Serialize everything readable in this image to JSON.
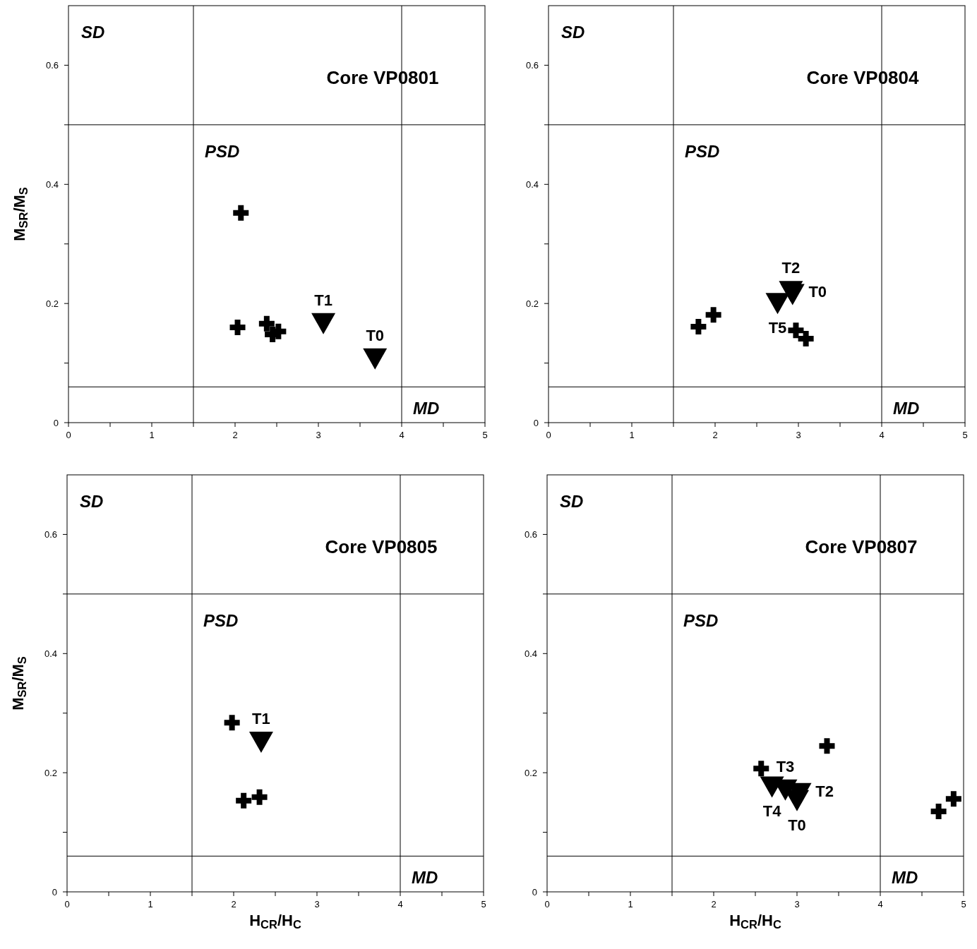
{
  "chart_data": [
    {
      "type": "scatter",
      "title": "Core VP0801",
      "ylabel": "M$_{SR}$/M$_{S}$",
      "xlim": [
        0,
        5
      ],
      "ylim": [
        0,
        0.7
      ],
      "xticks": [
        0,
        {
          "value": 0.5,
          "label": null
        },
        1,
        {
          "value": 1.5,
          "label": null
        },
        2,
        {
          "value": 2.5,
          "label": null
        },
        3,
        {
          "value": 3.5,
          "label": null
        },
        4,
        {
          "value": 4.5,
          "label": null
        },
        5
      ],
      "yticks": [
        {
          "value": 0,
          "label": "0"
        },
        {
          "value": 0.1,
          "label": null
        },
        {
          "value": 0.2,
          "label": "0.2"
        },
        {
          "value": 0.3,
          "label": null
        },
        {
          "value": 0.4,
          "label": "0.4"
        },
        {
          "value": 0.5,
          "label": null
        },
        {
          "value": 0.6,
          "label": "0.6"
        }
      ],
      "grid": false,
      "ref_lines": [
        {
          "axis": "x",
          "value": 1.5
        },
        {
          "axis": "x",
          "value": 4
        },
        {
          "axis": "y",
          "value": 0.5
        },
        {
          "axis": "y",
          "value": 0.06
        }
      ],
      "annotations": [
        "SD",
        "PSD",
        "MD"
      ],
      "series": [
        {
          "type": "scatter",
          "marker": "cross",
          "color": "#000000",
          "x": [
            2.07,
            2.03,
            2.38,
            2.45,
            2.52
          ],
          "values": [
            0.352,
            0.16,
            0.166,
            0.148,
            0.153
          ]
        },
        {
          "type": "scatter",
          "marker": "triangle",
          "color": "#000000",
          "x": [
            3.06,
            3.68
          ],
          "values": [
            0.166,
            0.107
          ],
          "value_labels": [
            "T1",
            "T0"
          ]
        }
      ]
    },
    {
      "type": "scatter",
      "title": "Core VP0804",
      "xlim": [
        0,
        5
      ],
      "ylim": [
        0,
        0.7
      ],
      "xticks": [
        0,
        {
          "value": 0.5,
          "label": null
        },
        1,
        {
          "value": 1.5,
          "label": null
        },
        2,
        {
          "value": 2.5,
          "label": null
        },
        3,
        {
          "value": 3.5,
          "label": null
        },
        4,
        {
          "value": 4.5,
          "label": null
        },
        5
      ],
      "yticks": [
        {
          "value": 0,
          "label": "0"
        },
        {
          "value": 0.1,
          "label": null
        },
        {
          "value": 0.2,
          "label": "0.2"
        },
        {
          "value": 0.3,
          "label": null
        },
        {
          "value": 0.4,
          "label": "0.4"
        },
        {
          "value": 0.5,
          "label": null
        },
        {
          "value": 0.6,
          "label": "0.6"
        }
      ],
      "grid": false,
      "ref_lines": [
        {
          "axis": "x",
          "value": 1.5
        },
        {
          "axis": "x",
          "value": 4
        },
        {
          "axis": "y",
          "value": 0.5
        },
        {
          "axis": "y",
          "value": 0.06
        }
      ],
      "annotations": [
        "SD",
        "PSD",
        "MD"
      ],
      "series": [
        {
          "type": "scatter",
          "marker": "cross",
          "color": "#000000",
          "x": [
            1.8,
            1.98,
            2.97,
            3.09
          ],
          "values": [
            0.161,
            0.181,
            0.155,
            0.141
          ]
        },
        {
          "type": "scatter",
          "marker": "triangle",
          "color": "#000000",
          "x": [
            2.75,
            2.91,
            2.93
          ],
          "values": [
            0.2,
            0.22,
            0.215
          ],
          "value_labels": [
            "T5",
            "T2",
            "T0"
          ]
        }
      ]
    },
    {
      "type": "scatter",
      "title": "Core VP0805",
      "xlabel": "H$_{CR}$/H$_{C}$",
      "ylabel": "M$_{SR}$/M$_{S}$",
      "xlim": [
        0,
        5
      ],
      "ylim": [
        0,
        0.7
      ],
      "xticks": [
        0,
        {
          "value": 0.5,
          "label": null
        },
        1,
        {
          "value": 1.5,
          "label": null
        },
        2,
        {
          "value": 2.5,
          "label": null
        },
        3,
        {
          "value": 3.5,
          "label": null
        },
        4,
        {
          "value": 4.5,
          "label": null
        },
        5
      ],
      "yticks": [
        {
          "value": 0,
          "label": "0"
        },
        {
          "value": 0.1,
          "label": null
        },
        {
          "value": 0.2,
          "label": "0.2"
        },
        {
          "value": 0.3,
          "label": null
        },
        {
          "value": 0.4,
          "label": "0.4"
        },
        {
          "value": 0.5,
          "label": null
        },
        {
          "value": 0.6,
          "label": "0.6"
        }
      ],
      "grid": false,
      "ref_lines": [
        {
          "axis": "x",
          "value": 1.5
        },
        {
          "axis": "x",
          "value": 4
        },
        {
          "axis": "y",
          "value": 0.5
        },
        {
          "axis": "y",
          "value": 0.06
        }
      ],
      "annotations": [
        "SD",
        "PSD",
        "MD"
      ],
      "series": [
        {
          "type": "scatter",
          "marker": "cross",
          "color": "#000000",
          "x": [
            1.98,
            2.12,
            2.31
          ],
          "values": [
            0.284,
            0.153,
            0.159
          ]
        },
        {
          "type": "scatter",
          "marker": "triangle",
          "color": "#000000",
          "x": [
            2.33
          ],
          "values": [
            0.251
          ],
          "value_labels": [
            "T1"
          ]
        }
      ]
    },
    {
      "type": "scatter",
      "title": "Core VP0807",
      "xlabel": "H$_{CR}$/H$_{C}$",
      "xlim": [
        0,
        5
      ],
      "ylim": [
        0,
        0.7
      ],
      "xticks": [
        0,
        {
          "value": 0.5,
          "label": null
        },
        1,
        {
          "value": 1.5,
          "label": null
        },
        2,
        {
          "value": 2.5,
          "label": null
        },
        3,
        {
          "value": 3.5,
          "label": null
        },
        4,
        {
          "value": 4.5,
          "label": null
        },
        5
      ],
      "yticks": [
        {
          "value": 0,
          "label": "0"
        },
        {
          "value": 0.1,
          "label": null
        },
        {
          "value": 0.2,
          "label": "0.2"
        },
        {
          "value": 0.3,
          "label": null
        },
        {
          "value": 0.4,
          "label": "0.4"
        },
        {
          "value": 0.5,
          "label": null
        },
        {
          "value": 0.6,
          "label": "0.6"
        }
      ],
      "grid": false,
      "ref_lines": [
        {
          "axis": "x",
          "value": 1.5
        },
        {
          "axis": "x",
          "value": 4
        },
        {
          "axis": "y",
          "value": 0.5
        },
        {
          "axis": "y",
          "value": 0.06
        }
      ],
      "annotations": [
        "SD",
        "PSD",
        "MD"
      ],
      "series": [
        {
          "type": "scatter",
          "marker": "cross",
          "color": "#000000",
          "x": [
            3.36,
            2.57,
            4.7,
            4.88
          ],
          "values": [
            0.245,
            0.207,
            0.135,
            0.156
          ]
        },
        {
          "type": "scatter",
          "marker": "triangle",
          "color": "#000000",
          "x": [
            2.7,
            2.86,
            3.03,
            3.0
          ],
          "values": [
            0.176,
            0.171,
            0.165,
            0.153
          ],
          "value_labels": [
            "T4",
            "T3",
            "T2",
            "T0"
          ]
        }
      ]
    }
  ]
}
